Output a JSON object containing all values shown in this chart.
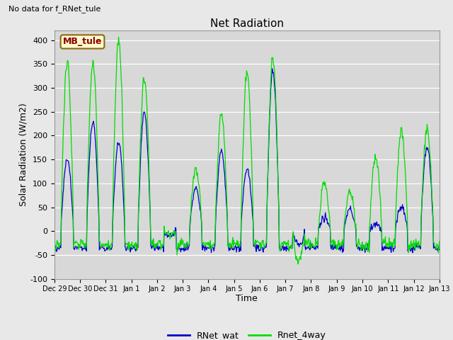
{
  "title": "Net Radiation",
  "no_data_text": "No data for f_RNet_tule",
  "xlabel": "Time",
  "ylabel": "Solar Radiation (W/m2)",
  "ylim": [
    -100,
    420
  ],
  "yticks": [
    -100,
    -50,
    0,
    50,
    100,
    150,
    200,
    250,
    300,
    350,
    400
  ],
  "xtick_labels": [
    "Dec 29",
    "Dec 30",
    "Dec 31",
    "Jan 1",
    "Jan 2",
    "Jan 3",
    "Jan 4",
    "Jan 5",
    "Jan 6",
    "Jan 7",
    "Jan 8",
    "Jan 9",
    "Jan 10",
    "Jan 11",
    "Jan 12",
    "Jan 13"
  ],
  "legend_box_label": "MB_tule",
  "legend_box_text_color": "#8B0000",
  "legend_box_bg": "#FFFACD",
  "legend_box_border": "#8B6914",
  "line_blue_color": "#0000CC",
  "line_green_color": "#00DD00",
  "fig_bg_color": "#E8E8E8",
  "plot_bg_color": "#D8D8D8",
  "line_blue_label": "RNet_wat",
  "line_green_label": "Rnet_4way",
  "n_days": 15,
  "blue_peaks": [
    150,
    230,
    185,
    250,
    -10,
    90,
    165,
    130,
    340,
    -30,
    30,
    45,
    15,
    50,
    180
  ],
  "green_peaks": [
    355,
    355,
    395,
    325,
    -10,
    130,
    245,
    330,
    365,
    -60,
    100,
    80,
    155,
    210,
    210
  ],
  "night_blue": -35,
  "night_green": -28
}
